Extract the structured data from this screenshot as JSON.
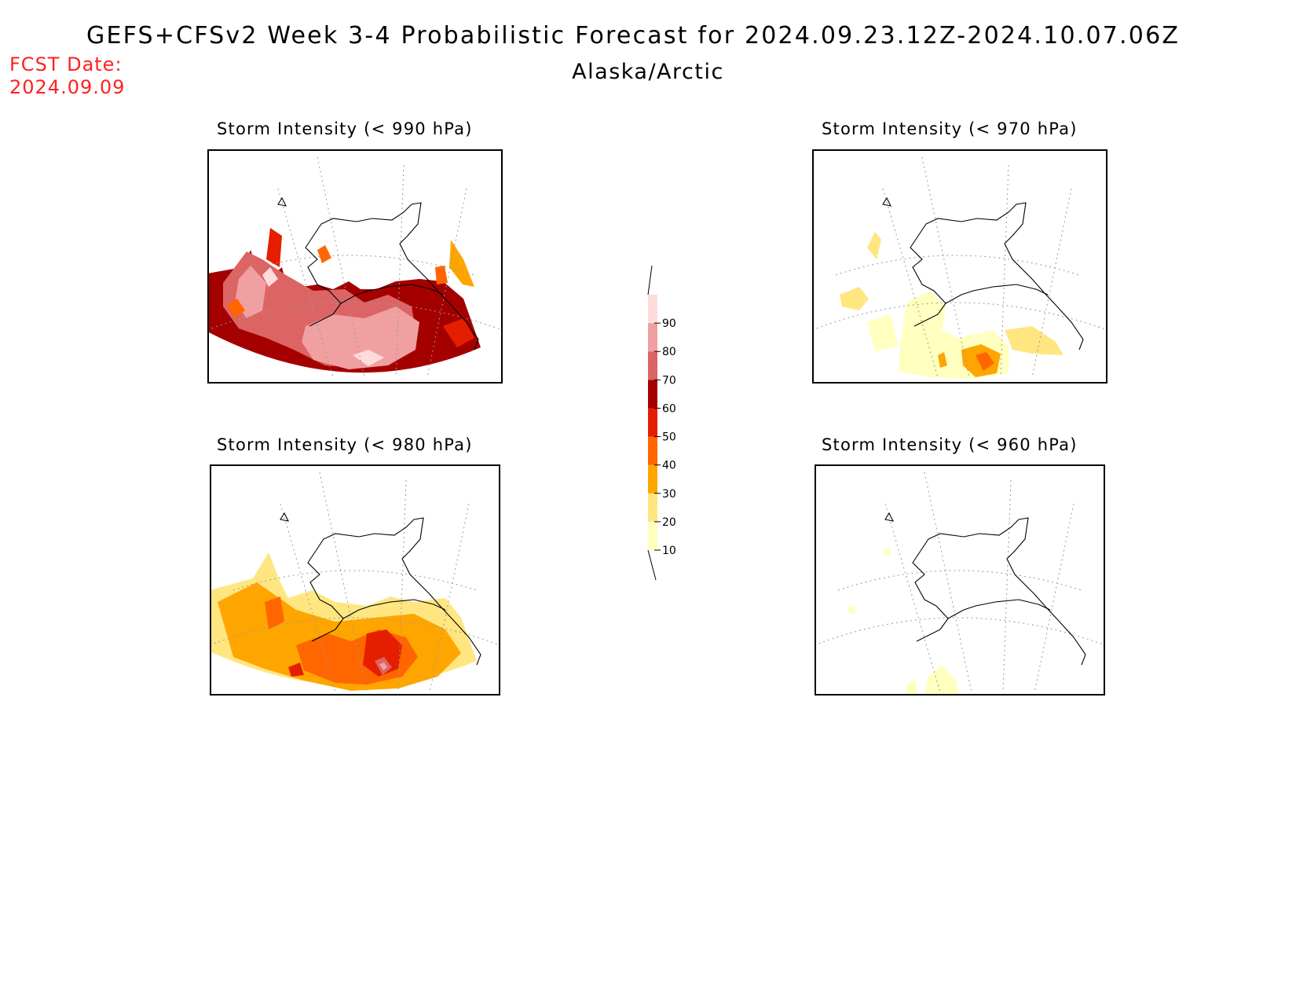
{
  "header": {
    "title": "GEFS+CFSv2 Week 3-4 Probabilistic Forecast for 2024.09.23.12Z-2024.10.07.06Z",
    "subtitle": "Alaska/Arctic",
    "fcst_label": "FCST Date:",
    "fcst_date": "2024.09.09"
  },
  "panels": [
    {
      "id": "p990",
      "title": "Storm Intensity (< 990 hPa)",
      "probability_level": "very-high"
    },
    {
      "id": "p970",
      "title": "Storm Intensity (< 970 hPa)",
      "probability_level": "low"
    },
    {
      "id": "p980",
      "title": "Storm Intensity (< 980 hPa)",
      "probability_level": "moderate"
    },
    {
      "id": "p960",
      "title": "Storm Intensity (< 960 hPa)",
      "probability_level": "very-low"
    }
  ],
  "colorbar": {
    "levels": [
      "10",
      "20",
      "30",
      "40",
      "50",
      "60",
      "70",
      "80",
      "90"
    ],
    "colors": [
      "#ffffc0",
      "#ffe680",
      "#ffa500",
      "#ff6600",
      "#e61e00",
      "#a50000",
      "#dc6464",
      "#f0a0a0",
      "#ffdcdc"
    ]
  }
}
